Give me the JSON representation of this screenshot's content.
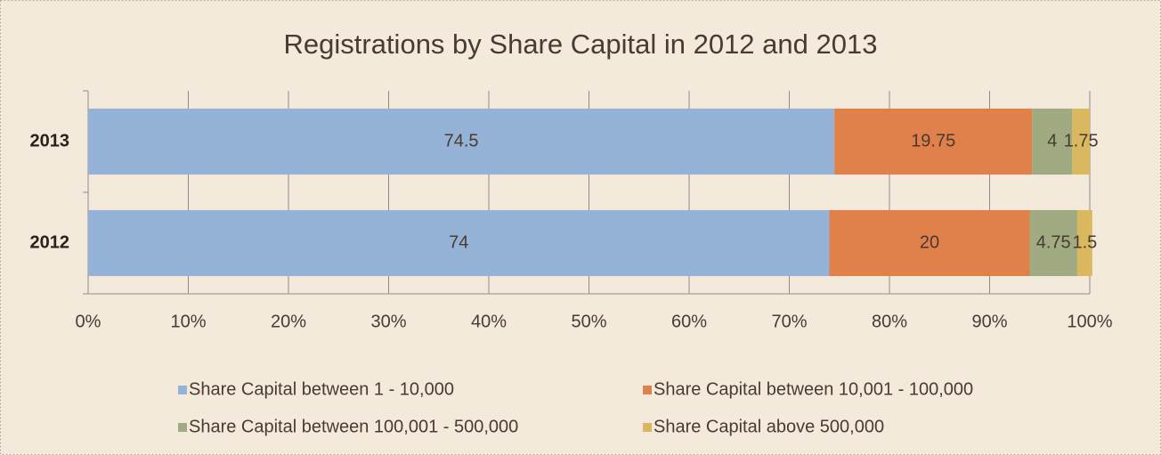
{
  "chart_data": {
    "type": "bar",
    "orientation": "horizontal",
    "stacked": true,
    "title": "Registrations by Share Capital in 2012 and 2013",
    "categories": [
      "2013",
      "2012"
    ],
    "series": [
      {
        "name": "Share Capital between 1 - 10,000",
        "color": "#95b3d7",
        "values": [
          74.5,
          74
        ]
      },
      {
        "name": "Share Capital between 10,001 - 100,000",
        "color": "#e0804a",
        "values": [
          19.75,
          20
        ]
      },
      {
        "name": "Share Capital between 100,001 - 500,000",
        "color": "#a0ab82",
        "values": [
          4,
          4.75
        ]
      },
      {
        "name": "Share Capital above 500,000",
        "color": "#d9b860",
        "values": [
          1.75,
          1.5
        ]
      }
    ],
    "xlim": [
      0,
      100
    ],
    "xticks": [
      {
        "value": 0,
        "label": "0%"
      },
      {
        "value": 10,
        "label": "10%"
      },
      {
        "value": 20,
        "label": "20%"
      },
      {
        "value": 30,
        "label": "30%"
      },
      {
        "value": 40,
        "label": "40%"
      },
      {
        "value": 50,
        "label": "50%"
      },
      {
        "value": 60,
        "label": "60%"
      },
      {
        "value": 70,
        "label": "70%"
      },
      {
        "value": 80,
        "label": "80%"
      },
      {
        "value": 90,
        "label": "90%"
      },
      {
        "value": 100,
        "label": "100%"
      }
    ],
    "grid": true,
    "legend": "bottom"
  }
}
